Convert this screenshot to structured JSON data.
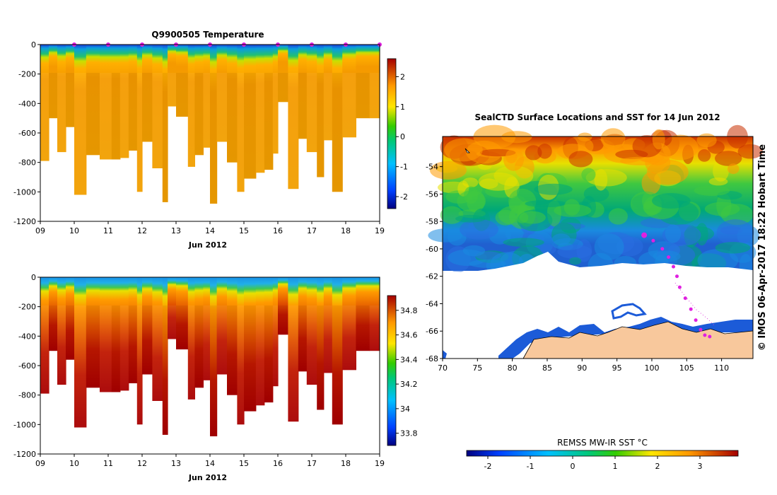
{
  "chart_data": [
    {
      "type": "heatmap",
      "title": "Q9900505  Temperature",
      "xlabel": "Jun 2012",
      "xticks": [
        "09",
        "10",
        "11",
        "12",
        "13",
        "14",
        "15",
        "16",
        "17",
        "18",
        "19"
      ],
      "xlim": [
        9,
        19
      ],
      "ylim": [
        -1200,
        0
      ],
      "yticks": [
        0,
        -200,
        -400,
        -600,
        -800,
        -1000,
        -1200
      ],
      "colorbar": {
        "ticks": [
          "-2",
          "-1",
          "0",
          "1",
          "2"
        ],
        "range": [
          -2.4,
          2.6
        ]
      },
      "surface_markers_day": [
        10.0,
        11.0,
        12.0,
        13.0,
        14.0,
        15.0,
        16.0,
        17.0,
        18.0,
        19.0
      ],
      "profiles": [
        {
          "day": 9.0,
          "depth": 790
        },
        {
          "day": 9.25,
          "depth": 500
        },
        {
          "day": 9.5,
          "depth": 730
        },
        {
          "day": 9.75,
          "depth": 560
        },
        {
          "day": 10.0,
          "depth": 1020
        },
        {
          "day": 10.35,
          "depth": 750
        },
        {
          "day": 10.75,
          "depth": 780
        },
        {
          "day": 11.1,
          "depth": 780
        },
        {
          "day": 11.35,
          "depth": 770
        },
        {
          "day": 11.6,
          "depth": 720
        },
        {
          "day": 11.85,
          "depth": 1000
        },
        {
          "day": 12.0,
          "depth": 660
        },
        {
          "day": 12.3,
          "depth": 840
        },
        {
          "day": 12.6,
          "depth": 1070
        },
        {
          "day": 12.75,
          "depth": 420
        },
        {
          "day": 13.0,
          "depth": 490
        },
        {
          "day": 13.35,
          "depth": 830
        },
        {
          "day": 13.55,
          "depth": 750
        },
        {
          "day": 13.8,
          "depth": 700
        },
        {
          "day": 14.0,
          "depth": 1080
        },
        {
          "day": 14.2,
          "depth": 660
        },
        {
          "day": 14.5,
          "depth": 800
        },
        {
          "day": 14.8,
          "depth": 1000
        },
        {
          "day": 15.0,
          "depth": 910
        },
        {
          "day": 15.35,
          "depth": 870
        },
        {
          "day": 15.6,
          "depth": 850
        },
        {
          "day": 15.85,
          "depth": 740
        },
        {
          "day": 16.0,
          "depth": 390
        },
        {
          "day": 16.3,
          "depth": 980
        },
        {
          "day": 16.6,
          "depth": 640
        },
        {
          "day": 16.85,
          "depth": 730
        },
        {
          "day": 17.15,
          "depth": 900
        },
        {
          "day": 17.35,
          "depth": 650
        },
        {
          "day": 17.6,
          "depth": 1000
        },
        {
          "day": 17.9,
          "depth": 630
        },
        {
          "day": 18.3,
          "depth": 500
        },
        {
          "day": 18.7,
          "depth": 500
        }
      ]
    },
    {
      "type": "heatmap",
      "title": "",
      "xlabel": "Jun 2012",
      "xticks": [
        "09",
        "10",
        "11",
        "12",
        "13",
        "14",
        "15",
        "16",
        "17",
        "18",
        "19"
      ],
      "xlim": [
        9,
        19
      ],
      "ylim": [
        -1200,
        0
      ],
      "yticks": [
        0,
        -200,
        -400,
        -600,
        -800,
        -1000,
        -1200
      ],
      "colorbar": {
        "ticks": [
          "33.8",
          "34",
          "34.2",
          "34.4",
          "34.6",
          "34.8"
        ],
        "range": [
          33.7,
          34.92
        ]
      }
    },
    {
      "type": "heatmap",
      "title": "SealCTD Surface Locations and SST for 14 Jun 2012",
      "xticks": [
        "70",
        "75",
        "80",
        "85",
        "90",
        "95",
        "100",
        "105",
        "110"
      ],
      "yticks": [
        "-54",
        "-56",
        "-58",
        "-60",
        "-62",
        "-64",
        "-66",
        "-68"
      ],
      "xlim": [
        70,
        114.5
      ],
      "ylim": [
        -68,
        -51.8
      ],
      "colorbar_label": "REMSS MW-IR SST °C",
      "colorbar": {
        "ticks": [
          "-2",
          "-1",
          "0",
          "1",
          "2",
          "3"
        ],
        "range": [
          -2.5,
          3.9
        ]
      },
      "side_label": "© IMOS 06-Apr-2017 18:22 Hobart Time",
      "track": [
        {
          "lon": 98.9,
          "lat": -59.0
        },
        {
          "lon": 100.2,
          "lat": -59.4
        },
        {
          "lon": 101.5,
          "lat": -60.0
        },
        {
          "lon": 102.4,
          "lat": -60.6
        },
        {
          "lon": 103.1,
          "lat": -61.3
        },
        {
          "lon": 103.6,
          "lat": -62.0
        },
        {
          "lon": 104.0,
          "lat": -62.8
        },
        {
          "lon": 104.8,
          "lat": -63.6
        },
        {
          "lon": 105.6,
          "lat": -64.4
        },
        {
          "lon": 106.3,
          "lat": -65.2
        },
        {
          "lon": 107.0,
          "lat": -65.9
        },
        {
          "lon": 107.6,
          "lat": -66.3
        },
        {
          "lon": 108.3,
          "lat": -66.4
        }
      ]
    }
  ]
}
